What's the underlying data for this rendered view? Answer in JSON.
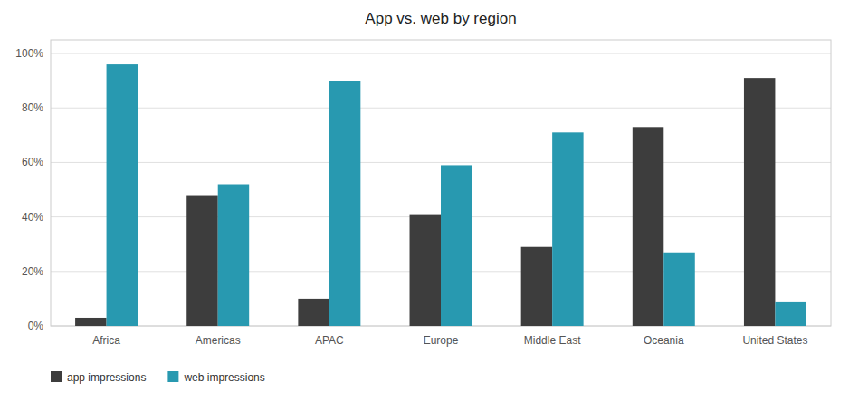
{
  "chart_data": {
    "type": "bar",
    "title": "App vs. web by region",
    "categories": [
      "Africa",
      "Americas",
      "APAC",
      "Europe",
      "Middle East",
      "Oceania",
      "United States"
    ],
    "series": [
      {
        "name": "app impressions",
        "color": "#3d3d3d",
        "values": [
          0.03,
          0.48,
          0.1,
          0.41,
          0.29,
          0.73,
          0.91
        ]
      },
      {
        "name": "web impressions",
        "color": "#2899b0",
        "values": [
          0.96,
          0.52,
          0.9,
          0.59,
          0.71,
          0.27,
          0.09
        ]
      }
    ],
    "ylim": [
      0,
      1.05
    ],
    "yticks": [
      {
        "value": 0,
        "label": "0%"
      },
      {
        "value": 0.2,
        "label": "20%"
      },
      {
        "value": 0.4,
        "label": "40%"
      },
      {
        "value": 0.6,
        "label": "60%"
      },
      {
        "value": 0.8,
        "label": "80%"
      },
      {
        "value": 1.0,
        "label": "100%"
      }
    ],
    "grid": true,
    "legend": "bottom-left"
  }
}
